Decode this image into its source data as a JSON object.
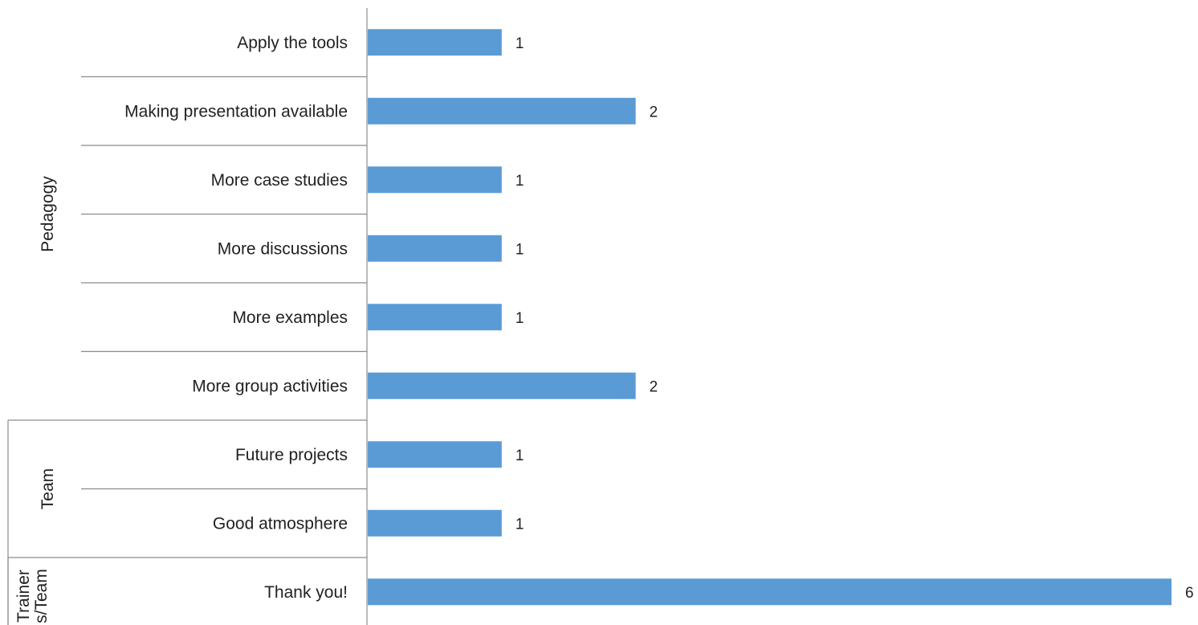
{
  "chart_data": {
    "type": "bar",
    "orientation": "horizontal",
    "title": "",
    "xlabel": "",
    "ylabel": "",
    "xlim": [
      0,
      6
    ],
    "grid": false,
    "legend": "none",
    "bar_color": "#5b9bd5",
    "groups": [
      {
        "name": "Pedagogy",
        "categories": [
          "Apply the tools",
          "Making presentation available",
          "More case studies",
          "More discussions",
          "More examples",
          "More group activities"
        ]
      },
      {
        "name": "Team",
        "categories": [
          "Future projects",
          "Good atmosphere"
        ]
      },
      {
        "name": "Trainer s/Team",
        "categories": [
          "Thank you!"
        ]
      }
    ],
    "categories": [
      "Apply the tools",
      "Making presentation available",
      "More case studies",
      "More discussions",
      "More examples",
      "More group activities",
      "Future projects",
      "Good atmosphere",
      "Thank you!"
    ],
    "values": [
      1,
      2,
      1,
      1,
      1,
      2,
      1,
      1,
      6
    ]
  }
}
